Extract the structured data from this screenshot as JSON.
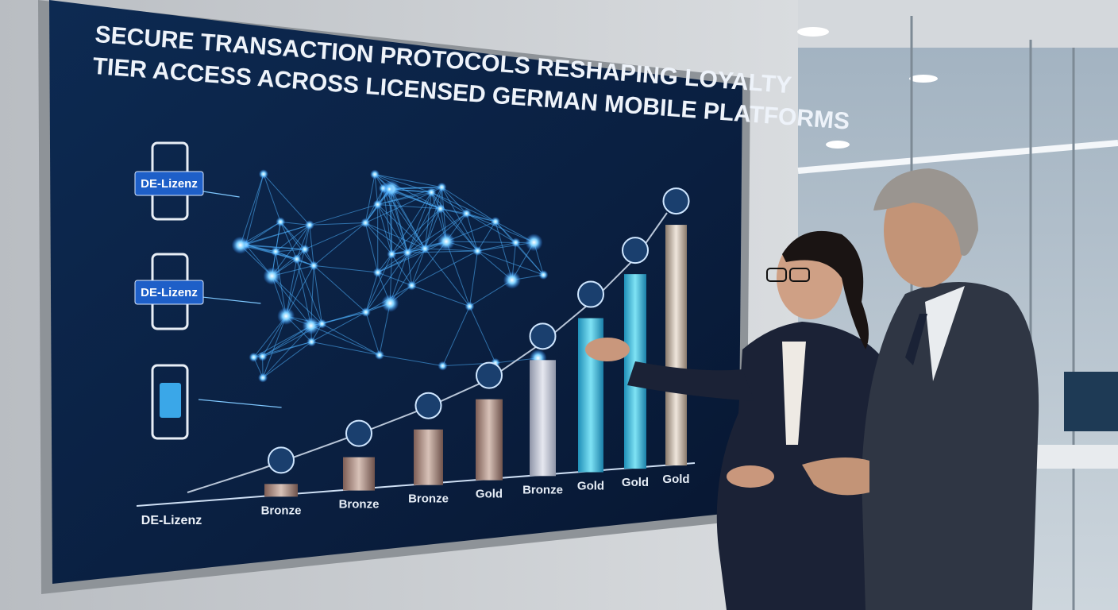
{
  "screen": {
    "title_lines": [
      "SECURE TRANSACTION PROTOCOLS RESHAPING LOYALTY",
      "TIER ACCESS ACROSS LICENSED GERMAN MOBILE PLATFORMS"
    ],
    "badges": [
      "DE-Lizenz",
      "DE-Lizenz"
    ],
    "axis_label": "DE-Lizenz",
    "bars": {
      "labels": [
        "Bronze",
        "Bronze",
        "Bronze",
        "Gold",
        "Bronze",
        "Gold",
        "Gold",
        "Gold"
      ],
      "values": [
        16,
        42,
        70,
        102,
        146,
        194,
        245,
        303
      ]
    }
  }
}
